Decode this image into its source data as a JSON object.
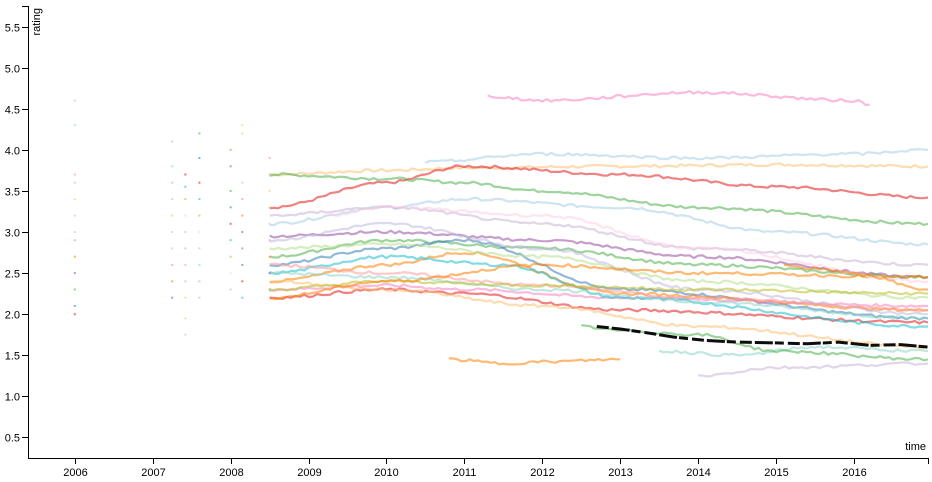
{
  "chart_data": {
    "type": "line",
    "title": "",
    "xlabel": "time",
    "ylabel": "rating",
    "xlim": [
      2005.4,
      2016.95
    ],
    "ylim": [
      0.25,
      5.75
    ],
    "x_ticks": [
      {
        "value": 2006,
        "label": "2006"
      },
      {
        "value": 2007,
        "label": "2007"
      },
      {
        "value": 2008,
        "label": "2008"
      },
      {
        "value": 2009,
        "label": "2009"
      },
      {
        "value": 2010,
        "label": "2010"
      },
      {
        "value": 2011,
        "label": "2011"
      },
      {
        "value": 2012,
        "label": "2012"
      },
      {
        "value": 2013,
        "label": "2013"
      },
      {
        "value": 2014,
        "label": "2014"
      },
      {
        "value": 2015,
        "label": "2015"
      },
      {
        "value": 2016,
        "label": "2016"
      }
    ],
    "y_ticks": [
      {
        "value": 0.5,
        "label": "0.5"
      },
      {
        "value": 1.0,
        "label": "1.0"
      },
      {
        "value": 1.5,
        "label": "1.5"
      },
      {
        "value": 2.0,
        "label": "2.0"
      },
      {
        "value": 2.5,
        "label": "2.5"
      },
      {
        "value": 3.0,
        "label": "3.0"
      },
      {
        "value": 3.5,
        "label": "3.5"
      },
      {
        "value": 4.0,
        "label": "4.0"
      },
      {
        "value": 4.5,
        "label": "4.5"
      },
      {
        "value": 5.0,
        "label": "5.0"
      },
      {
        "value": 5.5,
        "label": "5.5"
      }
    ],
    "grid": false,
    "legend": "none",
    "palette": [
      "#e41a1c",
      "#377eb8",
      "#4daf4a",
      "#984ea3",
      "#ff7f00",
      "#f781bf",
      "#a6cee3",
      "#b2df8a",
      "#fdbf6f",
      "#cab2d6",
      "#fb9a99",
      "#8dd3c7",
      "#bebada",
      "#fccde5",
      "#bcbd22",
      "#17becf"
    ],
    "scatter_columns": [
      {
        "x": 2006.0,
        "y_values": [
          2.0,
          2.1,
          2.3,
          2.5,
          2.7,
          2.9,
          3.0,
          3.2,
          3.4,
          3.6,
          3.7,
          4.3,
          4.6
        ]
      },
      {
        "x": 2007.25,
        "y_values": [
          2.2,
          2.4,
          2.6,
          2.8,
          3.0,
          3.2,
          3.4,
          3.6,
          3.8,
          4.1
        ]
      },
      {
        "x": 2007.42,
        "y_values": [
          1.75,
          1.95,
          2.2,
          2.4,
          2.6,
          2.8,
          3.0,
          3.2,
          3.4,
          3.55,
          3.7
        ]
      },
      {
        "x": 2007.6,
        "y_values": [
          2.2,
          2.4,
          2.6,
          2.8,
          3.0,
          3.2,
          3.4,
          3.6,
          3.9,
          4.2
        ]
      },
      {
        "x": 2008.0,
        "y_values": [
          2.3,
          2.5,
          2.7,
          2.9,
          3.1,
          3.3,
          3.5,
          3.8,
          4.0
        ]
      },
      {
        "x": 2008.15,
        "y_values": [
          2.2,
          2.4,
          2.6,
          2.8,
          3.0,
          3.2,
          3.4,
          3.6,
          4.2,
          4.3
        ]
      },
      {
        "x": 2008.5,
        "y_values": [
          2.3,
          2.5,
          2.7,
          2.9,
          3.1,
          3.3,
          3.5,
          3.7,
          3.9
        ]
      }
    ],
    "series": [
      {
        "x": [
          2008.5,
          2010.0,
          2011.0,
          2013.0,
          2015.0,
          2016.95
        ],
        "y": [
          3.7,
          3.75,
          3.78,
          3.8,
          3.82,
          3.8
        ],
        "color": "#fdbf6f"
      },
      {
        "x": [
          2008.5,
          2010.0,
          2011.0,
          2013.0,
          2015.0,
          2016.95
        ],
        "y": [
          3.3,
          3.6,
          3.8,
          3.7,
          3.55,
          3.42
        ],
        "color": "#e41a1c"
      },
      {
        "x": [
          2008.5,
          2010.0,
          2011.0,
          2012.0,
          2014.0,
          2016.95
        ],
        "y": [
          3.7,
          3.65,
          3.6,
          3.5,
          3.3,
          3.1
        ],
        "color": "#4daf4a"
      },
      {
        "x": [
          2008.5,
          2010.0,
          2011.0,
          2013.0,
          2015.0,
          2016.95
        ],
        "y": [
          3.1,
          3.3,
          3.4,
          3.3,
          3.0,
          2.85
        ],
        "color": "#a6cee3"
      },
      {
        "x": [
          2008.5,
          2010.0,
          2012.0,
          2014.0,
          2016.95
        ],
        "y": [
          2.95,
          3.0,
          2.9,
          2.7,
          2.45
        ],
        "color": "#984ea3"
      },
      {
        "x": [
          2008.5,
          2010.0,
          2012.0,
          2014.0,
          2016.95
        ],
        "y": [
          2.7,
          2.9,
          2.8,
          2.6,
          2.45
        ],
        "color": "#4daf4a"
      },
      {
        "x": [
          2008.5,
          2010.0,
          2011.0,
          2013.0,
          2016.95
        ],
        "y": [
          2.6,
          2.8,
          2.9,
          2.3,
          1.95
        ],
        "color": "#377eb8"
      },
      {
        "x": [
          2008.5,
          2010.0,
          2011.0,
          2013.0,
          2016.95
        ],
        "y": [
          2.4,
          2.6,
          2.75,
          2.25,
          2.05
        ],
        "color": "#ff7f00"
      },
      {
        "x": [
          2008.5,
          2010.0,
          2011.0,
          2013.0,
          2016.95
        ],
        "y": [
          2.3,
          2.35,
          2.3,
          2.2,
          2.1
        ],
        "color": "#f781bf"
      },
      {
        "x": [
          2008.5,
          2010.0,
          2011.0,
          2013.0,
          2016.95
        ],
        "y": [
          2.2,
          2.3,
          2.25,
          2.05,
          1.9
        ],
        "color": "#e41a1c"
      },
      {
        "x": [
          2008.5,
          2010.0,
          2011.5,
          2013.0,
          2016.95
        ],
        "y": [
          2.5,
          2.7,
          2.6,
          2.2,
          1.85
        ],
        "color": "#17becf"
      },
      {
        "x": [
          2008.5,
          2010.0,
          2012.0,
          2014.0,
          2016.95
        ],
        "y": [
          2.9,
          3.1,
          2.8,
          2.3,
          2.0
        ],
        "color": "#bebada"
      },
      {
        "x": [
          2008.5,
          2010.0,
          2012.0,
          2014.0,
          2016.95
        ],
        "y": [
          2.8,
          2.85,
          2.7,
          2.4,
          2.2
        ],
        "color": "#b2df8a"
      },
      {
        "x": [
          2008.5,
          2010.0,
          2012.0,
          2014.0,
          2016.95
        ],
        "y": [
          2.4,
          2.3,
          2.1,
          1.85,
          1.6
        ],
        "color": "#fdbf6f"
      },
      {
        "x": [
          2008.5,
          2010.0,
          2012.0,
          2014.0,
          2016.95
        ],
        "y": [
          2.6,
          2.5,
          2.35,
          2.2,
          2.05
        ],
        "color": "#fb9a99"
      },
      {
        "x": [
          2008.5,
          2010.0,
          2012.0,
          2014.0,
          2016.95
        ],
        "y": [
          2.5,
          2.45,
          2.3,
          2.15,
          1.95
        ],
        "color": "#8dd3c7"
      },
      {
        "x": [
          2008.5,
          2010.0,
          2012.0,
          2014.0,
          2016.95
        ],
        "y": [
          2.3,
          2.4,
          2.35,
          2.3,
          2.25
        ],
        "color": "#bcbd22"
      },
      {
        "x": [
          2008.5,
          2010.0,
          2012.0,
          2014.0,
          2016.95
        ],
        "y": [
          3.2,
          3.3,
          3.1,
          2.8,
          2.6
        ],
        "color": "#cab2d6"
      },
      {
        "x": [
          2008.5,
          2010.0,
          2012.0,
          2014.0,
          2016.95
        ],
        "y": [
          2.2,
          2.4,
          2.6,
          2.5,
          2.45
        ],
        "color": "#ff7f00"
      },
      {
        "x": [
          2010.5,
          2012.0,
          2014.0,
          2016.0,
          2016.95
        ],
        "y": [
          3.85,
          3.95,
          3.9,
          3.95,
          4.0
        ],
        "color": "#a6cee3"
      },
      {
        "x": [
          2011.3,
          2012.0,
          2014.0,
          2016.0,
          2016.2
        ],
        "y": [
          4.65,
          4.6,
          4.7,
          4.6,
          4.55
        ],
        "color": "#f781bf"
      },
      {
        "x": [
          2009.2,
          2010.0,
          2012.0,
          2014.0,
          2016.95
        ],
        "y": [
          3.2,
          3.3,
          3.2,
          2.8,
          2.4
        ],
        "color": "#fccde5"
      },
      {
        "x": [
          2010.8,
          2011.5,
          2012.0,
          2013.0
        ],
        "y": [
          1.45,
          1.4,
          1.42,
          1.45
        ],
        "color": "#ff7f00"
      },
      {
        "x": [
          2014.0,
          2015.0,
          2016.95
        ],
        "y": [
          1.25,
          1.35,
          1.4
        ],
        "color": "#cab2d6"
      },
      {
        "x": [
          2013.5,
          2014.5,
          2015.5,
          2016.95
        ],
        "y": [
          1.55,
          1.5,
          1.6,
          1.55
        ],
        "color": "#8dd3c7"
      },
      {
        "x": [
          2012.5,
          2013.0,
          2014.0,
          2015.0,
          2016.95
        ],
        "y": [
          1.85,
          1.8,
          1.75,
          1.55,
          1.45
        ],
        "color": "#4daf4a"
      },
      {
        "x": [
          2015.1,
          2015.5,
          2016.0,
          2016.95
        ],
        "y": [
          2.6,
          2.55,
          2.5,
          2.3
        ],
        "color": "#ff7f00"
      }
    ],
    "highlight_series": {
      "x": [
        2012.7,
        2013.0,
        2013.3,
        2013.7,
        2014.1,
        2014.5,
        2015.0,
        2015.4,
        2015.8,
        2016.2,
        2016.6,
        2016.95
      ],
      "y": [
        1.85,
        1.82,
        1.78,
        1.72,
        1.68,
        1.66,
        1.65,
        1.64,
        1.66,
        1.62,
        1.63,
        1.6
      ],
      "color": "#000000"
    }
  }
}
